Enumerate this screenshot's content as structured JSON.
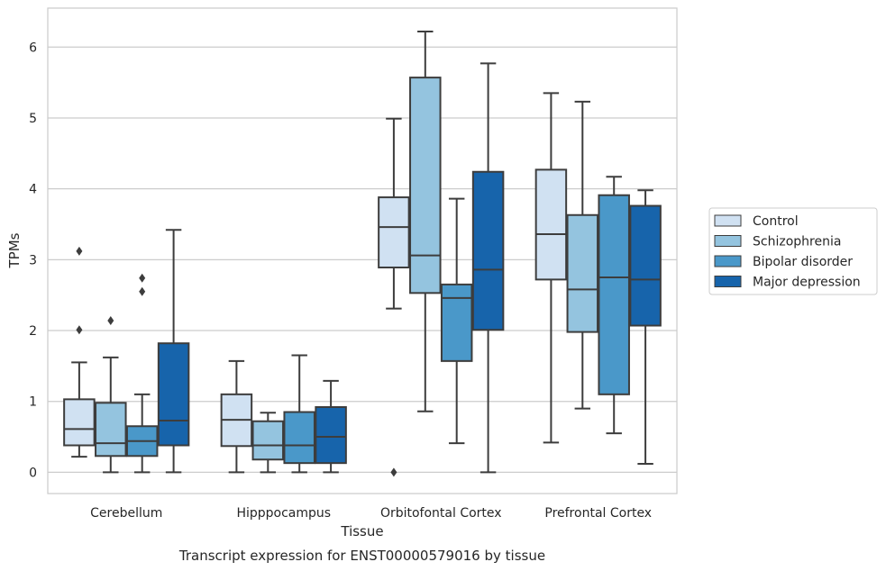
{
  "caption": "Transcript expression for ENST00000579016 by tissue",
  "chart_data": {
    "type": "box",
    "xlabel": "Tissue",
    "ylabel": "TPMs",
    "ylim": [
      -0.3,
      6.55
    ],
    "yticks": [
      0,
      1,
      2,
      3,
      4,
      5,
      6
    ],
    "grid": "horizontal",
    "legend_position": "right",
    "categories": [
      "Cerebellum",
      "Hipppocampus",
      "Orbitofontal Cortex",
      "Prefrontal Cortex"
    ],
    "series": [
      {
        "name": "Control",
        "color": "#d0e1f2",
        "boxes": [
          {
            "whislo": 0.22,
            "q1": 0.38,
            "med": 0.61,
            "q3": 1.03,
            "whishi": 1.55,
            "fliers": [
              2.01,
              3.12
            ]
          },
          {
            "whislo": 0.0,
            "q1": 0.37,
            "med": 0.74,
            "q3": 1.1,
            "whishi": 1.57,
            "fliers": []
          },
          {
            "whislo": 2.31,
            "q1": 2.89,
            "med": 3.46,
            "q3": 3.88,
            "whishi": 4.99,
            "fliers": [
              0.0
            ]
          },
          {
            "whislo": 0.42,
            "q1": 2.72,
            "med": 3.36,
            "q3": 4.27,
            "whishi": 5.35,
            "fliers": []
          }
        ]
      },
      {
        "name": "Schizophrenia",
        "color": "#94c4df",
        "boxes": [
          {
            "whislo": 0.0,
            "q1": 0.23,
            "med": 0.41,
            "q3": 0.98,
            "whishi": 1.62,
            "fliers": [
              2.14
            ]
          },
          {
            "whislo": 0.0,
            "q1": 0.18,
            "med": 0.38,
            "q3": 0.72,
            "whishi": 0.84,
            "fliers": []
          },
          {
            "whislo": 0.86,
            "q1": 2.53,
            "med": 3.06,
            "q3": 5.57,
            "whishi": 6.22,
            "fliers": []
          },
          {
            "whislo": 0.9,
            "q1": 1.98,
            "med": 2.58,
            "q3": 3.63,
            "whishi": 5.23,
            "fliers": []
          }
        ]
      },
      {
        "name": "Bipolar disorder",
        "color": "#4a98c9",
        "boxes": [
          {
            "whislo": 0.0,
            "q1": 0.23,
            "med": 0.44,
            "q3": 0.65,
            "whishi": 1.1,
            "fliers": [
              2.55,
              2.74
            ]
          },
          {
            "whislo": 0.0,
            "q1": 0.13,
            "med": 0.38,
            "q3": 0.85,
            "whishi": 1.65,
            "fliers": []
          },
          {
            "whislo": 0.41,
            "q1": 1.57,
            "med": 2.46,
            "q3": 2.65,
            "whishi": 3.86,
            "fliers": []
          },
          {
            "whislo": 0.55,
            "q1": 1.1,
            "med": 2.75,
            "q3": 3.91,
            "whishi": 4.17,
            "fliers": []
          }
        ]
      },
      {
        "name": "Major depression",
        "color": "#1764ab",
        "boxes": [
          {
            "whislo": 0.0,
            "q1": 0.38,
            "med": 0.73,
            "q3": 1.82,
            "whishi": 3.42,
            "fliers": []
          },
          {
            "whislo": 0.0,
            "q1": 0.13,
            "med": 0.5,
            "q3": 0.92,
            "whishi": 1.29,
            "fliers": []
          },
          {
            "whislo": 0.0,
            "q1": 2.01,
            "med": 2.86,
            "q3": 4.24,
            "whishi": 5.77,
            "fliers": []
          },
          {
            "whislo": 0.12,
            "q1": 2.07,
            "med": 2.72,
            "q3": 3.76,
            "whishi": 3.98,
            "fliers": []
          }
        ]
      }
    ]
  }
}
